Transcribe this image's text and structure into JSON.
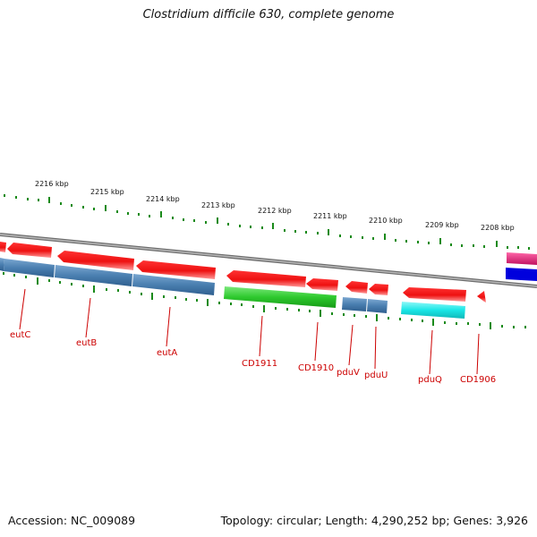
{
  "title": "Clostridium difficile 630, complete genome",
  "accession": "Accession: NC_009089",
  "summary": "Topology: circular; Length: 4,290,252 bp; Genes: 3,926",
  "scale_labels": [
    "2216 kbp",
    "2215 kbp",
    "2214 kbp",
    "2213 kbp",
    "2212 kbp",
    "2211 kbp",
    "2210 kbp",
    "2209 kbp",
    "2208 kbp"
  ],
  "gene_labels": [
    "eutC",
    "eutB",
    "eutA",
    "CD1911",
    "CD1910",
    "pduV",
    "pduU",
    "pduQ",
    "CD1906"
  ],
  "colors": {
    "red": "#ee1111",
    "blue": "#4a7fb0",
    "green": "#2ec92e",
    "cyan": "#19e6e6",
    "magenta": "#e6227a",
    "navy": "#0000dd",
    "backbone": "#8a8a8a",
    "tick": "#1a8a1a",
    "label": "#cc0000"
  }
}
